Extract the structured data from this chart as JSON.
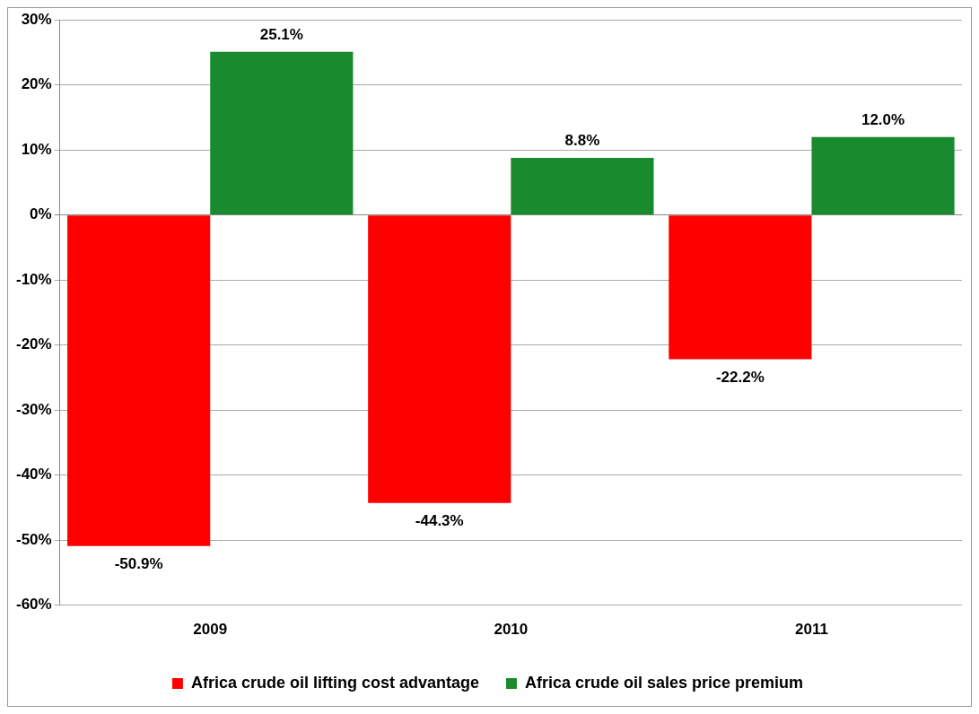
{
  "chart_data": {
    "type": "bar",
    "categories": [
      "2009",
      "2010",
      "2011"
    ],
    "series": [
      {
        "name": "Africa crude oil lifting cost advantage",
        "color": "#ff0000",
        "values": [
          -50.9,
          -44.3,
          -22.2
        ]
      },
      {
        "name": "Africa crude oil sales price premium",
        "color": "#1a8a2e",
        "values": [
          25.1,
          8.8,
          12.0
        ]
      }
    ],
    "value_labels": [
      [
        "-50.9%",
        "-44.3%",
        "-22.2%"
      ],
      [
        "25.1%",
        "8.8%",
        "12.0%"
      ]
    ],
    "ylim": [
      -60,
      30
    ],
    "yticks": [
      {
        "value": -60,
        "label": "-60%"
      },
      {
        "value": -50,
        "label": "-50%"
      },
      {
        "value": -40,
        "label": "-40%"
      },
      {
        "value": -30,
        "label": "-30%"
      },
      {
        "value": -20,
        "label": "-20%"
      },
      {
        "value": -10,
        "label": "-10%"
      },
      {
        "value": 0,
        "label": "0%"
      },
      {
        "value": 10,
        "label": "10%"
      },
      {
        "value": 20,
        "label": "20%"
      },
      {
        "value": 30,
        "label": "30%"
      }
    ],
    "grid": "y",
    "legend": "bottom"
  }
}
